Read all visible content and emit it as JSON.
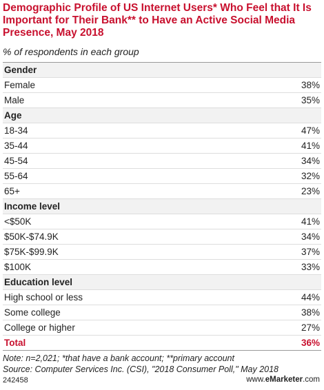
{
  "title": "Demographic Profile of US Internet Users* Who Feel that It Is Important for Their Bank** to Have an Active Social Media Presence, May 2018",
  "subtitle": "% of respondents in each group",
  "sections": [
    {
      "heading": "Gender",
      "rows": [
        [
          "Female",
          "38%"
        ],
        [
          "Male",
          "35%"
        ]
      ]
    },
    {
      "heading": "Age",
      "rows": [
        [
          "18-34",
          "47%"
        ],
        [
          "35-44",
          "41%"
        ],
        [
          "45-54",
          "34%"
        ],
        [
          "55-64",
          "32%"
        ],
        [
          "65+",
          "23%"
        ]
      ]
    },
    {
      "heading": "Income level",
      "rows": [
        [
          "<$50K",
          "41%"
        ],
        [
          "$50K-$74.9K",
          "34%"
        ],
        [
          "$75K-$99.9K",
          "37%"
        ],
        [
          "$100K",
          "33%"
        ]
      ]
    },
    {
      "heading": "Education level",
      "rows": [
        [
          "High school or less",
          "44%"
        ],
        [
          "Some college",
          "38%"
        ],
        [
          "College or higher",
          "27%"
        ]
      ]
    }
  ],
  "total": [
    "Total",
    "36%"
  ],
  "note": "Note: n=2,021; *that have a bank account; **primary account",
  "source": "Source: Computer Services Inc. (CSI), \"2018 Consumer Poll,\" May 2018",
  "chart_id": "242458",
  "brand": [
    "www.",
    "eMarketer",
    ".com"
  ]
}
